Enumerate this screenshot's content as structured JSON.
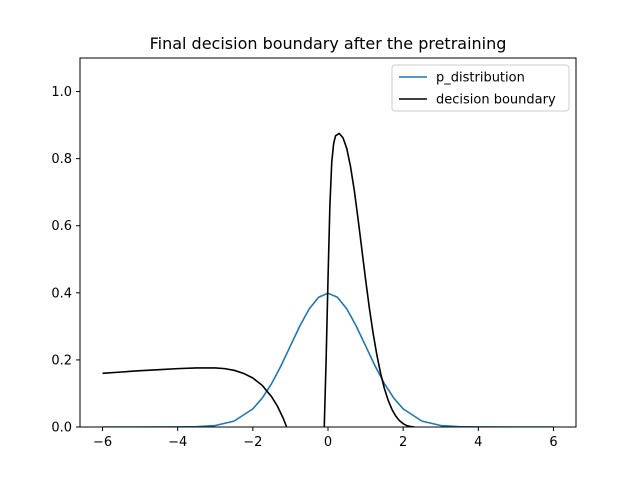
{
  "chart_data": {
    "type": "line",
    "title": "Final decision boundary after the pretraining",
    "xlabel": "",
    "ylabel": "",
    "xlim": [
      -6.6,
      6.6
    ],
    "ylim": [
      0.0,
      1.1
    ],
    "xticks": [
      -6,
      -4,
      -2,
      0,
      2,
      4,
      6
    ],
    "xtick_labels": [
      "−6",
      "−4",
      "−2",
      "0",
      "2",
      "4",
      "6"
    ],
    "yticks": [
      0.0,
      0.2,
      0.4,
      0.6,
      0.8,
      1.0
    ],
    "ytick_labels": [
      "0.0",
      "0.2",
      "0.4",
      "0.6",
      "0.8",
      "1.0"
    ],
    "grid": false,
    "legend_position": "top-right",
    "series": [
      {
        "name": "p_distribution",
        "color": "#1f77b4",
        "segments": [
          {
            "x": [
              -6,
              -5,
              -4,
              -3.5,
              -3,
              -2.5,
              -2,
              -1.75,
              -1.5,
              -1.25,
              -1,
              -0.75,
              -0.5,
              -0.25,
              0,
              0.25,
              0.5,
              0.75,
              1,
              1.25,
              1.5,
              1.75,
              2,
              2.5,
              3,
              3.5,
              4,
              5,
              6
            ],
            "y": [
              0.0,
              0.0,
              0.0001,
              0.0009,
              0.0044,
              0.0175,
              0.054,
              0.0863,
              0.1295,
              0.1826,
              0.242,
              0.3011,
              0.3521,
              0.3867,
              0.3989,
              0.3867,
              0.3521,
              0.3011,
              0.242,
              0.1826,
              0.1295,
              0.0863,
              0.054,
              0.0175,
              0.0044,
              0.0009,
              0.0001,
              0.0,
              0.0
            ]
          }
        ]
      },
      {
        "name": "decision boundary",
        "color": "#000000",
        "segments": [
          {
            "x": [
              -6,
              -5.5,
              -5,
              -4.5,
              -4,
              -3.5,
              -3,
              -2.75,
              -2.5,
              -2.25,
              -2,
              -1.75,
              -1.5,
              -1.35,
              -1.2,
              -1.1
            ],
            "y": [
              0.16,
              0.164,
              0.168,
              0.171,
              0.174,
              0.176,
              0.176,
              0.174,
              0.169,
              0.16,
              0.146,
              0.124,
              0.09,
              0.063,
              0.028,
              0.0
            ]
          },
          {
            "x": [
              -0.1,
              -0.05,
              0,
              0.05,
              0.1,
              0.15,
              0.2,
              0.3,
              0.4,
              0.5,
              0.6,
              0.7,
              0.8,
              0.9,
              1.0,
              1.1,
              1.2,
              1.3,
              1.4,
              1.5,
              1.6,
              1.7,
              1.8,
              1.9,
              2.0,
              2.1,
              2.2,
              2.3
            ],
            "y": [
              0.0,
              0.2,
              0.44,
              0.66,
              0.79,
              0.845,
              0.868,
              0.875,
              0.862,
              0.83,
              0.776,
              0.705,
              0.62,
              0.53,
              0.44,
              0.355,
              0.28,
              0.215,
              0.16,
              0.115,
              0.08,
              0.053,
              0.033,
              0.019,
              0.01,
              0.004,
              0.0015,
              0.0
            ]
          }
        ]
      }
    ]
  }
}
